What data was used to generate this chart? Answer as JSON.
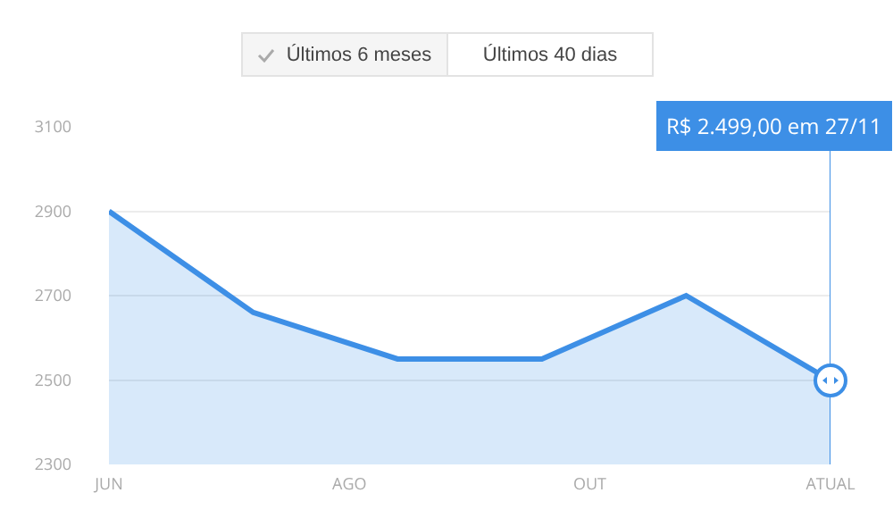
{
  "chart_data": {
    "type": "area",
    "categories": [
      "JUN",
      null,
      null,
      null,
      null,
      "ATUAL"
    ],
    "series": [
      {
        "color": "#3d8fe6",
        "values": [
          2900,
          2660,
          2550,
          2550,
          2700,
          2499
        ]
      }
    ],
    "ylim": [
      2300,
      3100
    ],
    "yticks": [
      2300,
      2500,
      2700,
      2900,
      3100
    ],
    "grid": "y",
    "marker": "none",
    "line_style": "solid",
    "ref_lines": [
      {
        "axis": "x",
        "value": "ATUAL",
        "label": "R$ 2.499,00 em 27/11",
        "color": "#3d8fe6"
      }
    ],
    "annotations": [
      "Últimos 6 meses",
      "Últimos 40 dias",
      "AGO",
      "OUT"
    ]
  }
}
